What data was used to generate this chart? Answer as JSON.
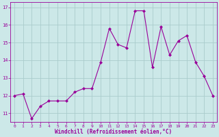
{
  "x": [
    0,
    1,
    2,
    3,
    4,
    5,
    6,
    7,
    8,
    9,
    10,
    11,
    12,
    13,
    14,
    15,
    16,
    17,
    18,
    19,
    20,
    21,
    22,
    23
  ],
  "y": [
    12.0,
    12.1,
    10.7,
    11.4,
    11.7,
    11.7,
    11.7,
    12.2,
    12.4,
    12.4,
    13.9,
    15.8,
    14.9,
    14.7,
    16.8,
    16.8,
    13.6,
    15.9,
    14.3,
    15.1,
    15.4,
    13.9,
    13.1,
    12.0
  ],
  "line_color": "#990099",
  "marker": "D",
  "marker_size": 2,
  "bg_color": "#cce8e8",
  "grid_color": "#aacccc",
  "xlabel": "Windchill (Refroidissement éolien,°C)",
  "xlabel_color": "#990099",
  "tick_color": "#990099",
  "ylim": [
    10.5,
    17.3
  ],
  "yticks": [
    11,
    12,
    13,
    14,
    15,
    16,
    17
  ],
  "xticks": [
    0,
    1,
    2,
    3,
    4,
    5,
    6,
    7,
    8,
    9,
    10,
    11,
    12,
    13,
    14,
    15,
    16,
    17,
    18,
    19,
    20,
    21,
    22,
    23
  ]
}
